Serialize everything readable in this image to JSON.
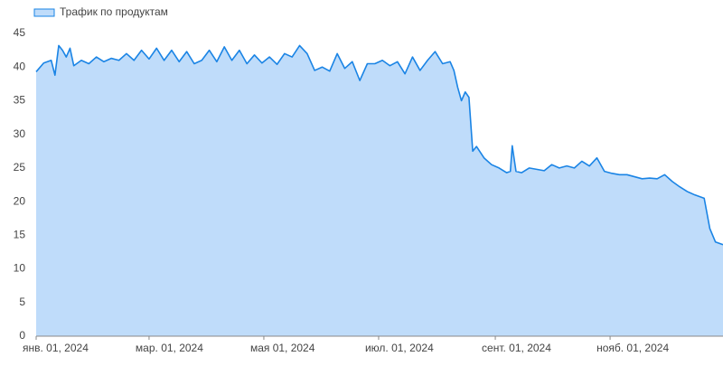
{
  "chart_data": {
    "type": "area",
    "series": [
      {
        "name": "Трафик по продуктам",
        "color": "#1a84e5",
        "fill": "#bfdcfa",
        "values": [
          39.3,
          40.6,
          41.0,
          38.8,
          43.2,
          42.5,
          41.5,
          42.8,
          40.2,
          41.0,
          40.5,
          41.5,
          40.8,
          41.3,
          41.0,
          42.0,
          41.0,
          42.5,
          41.2,
          42.8,
          41.0,
          42.5,
          40.8,
          42.3,
          40.5,
          41.0,
          42.5,
          40.8,
          43.0,
          41.0,
          42.5,
          40.5,
          41.8,
          40.6,
          41.5,
          40.4,
          42.0,
          41.5,
          43.2,
          42.0,
          39.5,
          40.0,
          39.4,
          42.0,
          39.8,
          40.8,
          38.0,
          40.5,
          40.5,
          41.0,
          40.2,
          40.8,
          39.0,
          41.5,
          39.5,
          41.0,
          42.3,
          40.5,
          40.8,
          39.5,
          37.0,
          35.0,
          36.3,
          35.5,
          27.5,
          28.2,
          26.5,
          25.5,
          25.0,
          24.3,
          24.5,
          28.3,
          24.5,
          24.3,
          25.0,
          24.8,
          24.6,
          25.5,
          25.0,
          25.3,
          25.0,
          26.0,
          25.3,
          26.5,
          24.5,
          24.2,
          24.0,
          24.0,
          23.7,
          23.4,
          23.5,
          23.4,
          24.0,
          23.0,
          22.2,
          21.5,
          21.0,
          20.8,
          20.5,
          16.0,
          14.0,
          13.6
        ]
      }
    ],
    "x": [
      "2024-01-01",
      "2024-01-05",
      "2024-01-09",
      "2024-01-11",
      "2024-01-13",
      "2024-01-15",
      "2024-01-17",
      "2024-01-19",
      "2024-01-21",
      "2024-01-25",
      "2024-01-29",
      "2024-02-02",
      "2024-02-06",
      "2024-02-10",
      "2024-02-14",
      "2024-02-18",
      "2024-02-22",
      "2024-02-26",
      "2024-03-01",
      "2024-03-05",
      "2024-03-09",
      "2024-03-13",
      "2024-03-17",
      "2024-03-21",
      "2024-03-25",
      "2024-03-29",
      "2024-04-02",
      "2024-04-06",
      "2024-04-10",
      "2024-04-14",
      "2024-04-18",
      "2024-04-22",
      "2024-04-26",
      "2024-04-30",
      "2024-05-04",
      "2024-05-08",
      "2024-05-12",
      "2024-05-16",
      "2024-05-20",
      "2024-05-24",
      "2024-05-28",
      "2024-06-01",
      "2024-06-05",
      "2024-06-09",
      "2024-06-13",
      "2024-06-17",
      "2024-06-21",
      "2024-06-25",
      "2024-06-29",
      "2024-07-03",
      "2024-07-07",
      "2024-07-11",
      "2024-07-15",
      "2024-07-19",
      "2024-07-23",
      "2024-07-27",
      "2024-07-31",
      "2024-08-04",
      "2024-08-08",
      "2024-08-10",
      "2024-08-12",
      "2024-08-14",
      "2024-08-16",
      "2024-08-18",
      "2024-08-20",
      "2024-08-22",
      "2024-08-26",
      "2024-08-30",
      "2024-09-03",
      "2024-09-07",
      "2024-09-09",
      "2024-09-10",
      "2024-09-12",
      "2024-09-15",
      "2024-09-19",
      "2024-09-23",
      "2024-09-27",
      "2024-10-01",
      "2024-10-05",
      "2024-10-09",
      "2024-10-13",
      "2024-10-17",
      "2024-10-21",
      "2024-10-25",
      "2024-10-29",
      "2024-11-02",
      "2024-11-06",
      "2024-11-10",
      "2024-11-14",
      "2024-11-18",
      "2024-11-22",
      "2024-11-26",
      "2024-11-30",
      "2024-12-04",
      "2024-12-08",
      "2024-12-12",
      "2024-12-16",
      "2024-12-18",
      "2024-12-21",
      "2024-12-24",
      "2024-12-27",
      "2024-12-31"
    ],
    "xlim": [
      "2024-01-01",
      "2024-12-31"
    ],
    "xticks": [
      {
        "value": "2024-01-01",
        "label": "янв. 01, 2024"
      },
      {
        "value": "2024-03-01",
        "label": "мар. 01, 2024"
      },
      {
        "value": "2024-05-01",
        "label": "мая 01, 2024"
      },
      {
        "value": "2024-07-01",
        "label": "июл. 01, 2024"
      },
      {
        "value": "2024-09-01",
        "label": "сент. 01, 2024"
      },
      {
        "value": "2024-11-01",
        "label": "нояб. 01, 2024"
      }
    ],
    "ylim": [
      0,
      45
    ],
    "yticks": [
      0,
      5,
      10,
      15,
      20,
      25,
      30,
      35,
      40,
      45
    ],
    "legend": "top-left"
  }
}
